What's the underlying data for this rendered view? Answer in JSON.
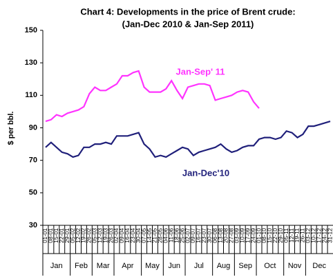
{
  "chart_data": {
    "type": "line",
    "title": "Chart 4: Developments in the price of Brent crude:",
    "subtitle": "(Jan-Dec 2010 & Jan-Sep 2011)",
    "y_label": "$ per bbl.",
    "categories": [
      "01-01",
      "08-01",
      "15-01",
      "22-01",
      "29-01",
      "05-02",
      "12-02",
      "19-02",
      "26-02",
      "05-03",
      "12-03",
      "19-03",
      "26-03",
      "02-04",
      "09-04",
      "16-04",
      "23-04",
      "30-04",
      "07-05",
      "14-05",
      "21-05",
      "28-05",
      "04-06",
      "11-06",
      "18-06",
      "25-06",
      "02-07",
      "09-07",
      "16-07",
      "23-07",
      "30-07",
      "06-08",
      "13-08",
      "20-08",
      "27-08",
      "03-09",
      "10-09",
      "17-09",
      "24-09",
      "01-10",
      "08-10",
      "15-10",
      "22-10",
      "29-10",
      "05-11",
      "12-11",
      "19-11",
      "26-11",
      "03-12",
      "10-12",
      "17-12",
      "24-12",
      "31-12"
    ],
    "months": [
      "Jan",
      "Feb",
      "Mar",
      "Apr",
      "May",
      "Jun",
      "Jul",
      "Aug",
      "Sep",
      "Oct",
      "Nov",
      "Dec"
    ],
    "series": [
      {
        "name": "Jan-Dec'10",
        "color": "#1f1f7a",
        "values": [
          78,
          81,
          78,
          75,
          74,
          72,
          73,
          78,
          78,
          80,
          80,
          81,
          80,
          85,
          85,
          85,
          86,
          87,
          80,
          77,
          72,
          73,
          72,
          74,
          76,
          78,
          77,
          73,
          75,
          76,
          77,
          78,
          80,
          77,
          75,
          76,
          78,
          79,
          79,
          83,
          84,
          84,
          83,
          84,
          88,
          87,
          84,
          86,
          91,
          91,
          92,
          93,
          94
        ]
      },
      {
        "name": "Jan-Sep' 11",
        "color": "#ff33ff",
        "values": [
          94,
          95,
          98,
          97,
          99,
          100,
          101,
          103,
          111,
          115,
          113,
          113,
          115,
          117,
          122,
          122,
          124,
          125,
          115,
          112,
          112,
          112,
          114,
          119,
          113,
          108,
          115,
          116,
          117,
          117,
          116,
          107,
          108,
          109,
          110,
          112,
          113,
          112,
          106,
          102,
          null,
          null,
          null,
          null,
          null,
          null,
          null,
          null,
          null,
          null,
          null,
          null,
          null
        ]
      }
    ],
    "ylim": [
      30,
      150
    ],
    "yticks": [
      30,
      50,
      70,
      90,
      110,
      130,
      150
    ],
    "grid": false
  }
}
